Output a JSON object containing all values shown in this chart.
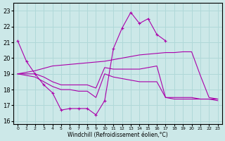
{
  "xlabel": "Windchill (Refroidissement éolien,°C)",
  "xlim": [
    -0.5,
    23.5
  ],
  "ylim": [
    15.8,
    23.5
  ],
  "yticks": [
    16,
    17,
    18,
    19,
    20,
    21,
    22,
    23
  ],
  "xticks": [
    0,
    1,
    2,
    3,
    4,
    5,
    6,
    7,
    8,
    9,
    10,
    11,
    12,
    13,
    14,
    15,
    16,
    17,
    18,
    19,
    20,
    21,
    22,
    23
  ],
  "background_color": "#cce8e8",
  "grid_color": "#b0d8d8",
  "line_color": "#aa00aa",
  "line1_x": [
    0,
    1,
    2,
    3,
    4,
    5,
    6,
    7,
    8,
    9,
    10,
    11,
    12,
    13,
    14,
    15,
    16,
    17
  ],
  "line1_y": [
    21.1,
    19.8,
    19.0,
    18.3,
    17.8,
    16.7,
    16.8,
    16.8,
    16.8,
    16.4,
    17.3,
    20.6,
    21.9,
    22.9,
    22.2,
    22.5,
    21.5,
    21.1
  ],
  "line2_x": [
    0,
    1,
    2,
    3,
    4,
    5,
    6,
    7,
    8,
    9,
    10,
    11,
    12,
    13,
    14,
    15,
    16,
    17,
    18,
    19,
    20,
    21,
    22,
    23
  ],
  "line2_y": [
    19.0,
    19.1,
    19.2,
    19.35,
    19.5,
    19.55,
    19.6,
    19.65,
    19.7,
    19.75,
    19.8,
    19.9,
    20.0,
    20.1,
    20.2,
    20.25,
    20.3,
    20.35,
    20.35,
    20.4,
    20.4,
    18.9,
    17.5,
    17.4
  ],
  "line3_x": [
    0,
    1,
    2,
    3,
    4,
    5,
    6,
    7,
    8,
    9,
    10,
    11,
    12,
    13,
    14,
    15,
    16,
    17,
    18,
    19,
    20,
    21,
    22,
    23
  ],
  "line3_y": [
    19.0,
    19.0,
    19.0,
    18.8,
    18.5,
    18.3,
    18.3,
    18.3,
    18.3,
    18.1,
    19.4,
    19.3,
    19.3,
    19.3,
    19.3,
    19.4,
    19.5,
    17.5,
    17.5,
    17.5,
    17.5,
    17.4,
    17.4,
    17.4
  ],
  "line4_x": [
    0,
    1,
    2,
    3,
    4,
    5,
    6,
    7,
    8,
    9,
    10,
    11,
    12,
    13,
    14,
    15,
    16,
    17,
    18,
    19,
    20,
    21,
    22,
    23
  ],
  "line4_y": [
    19.0,
    18.9,
    18.8,
    18.5,
    18.2,
    18.0,
    18.0,
    17.9,
    17.9,
    17.5,
    19.0,
    18.8,
    18.7,
    18.6,
    18.5,
    18.5,
    18.5,
    17.5,
    17.4,
    17.4,
    17.4,
    17.4,
    17.4,
    17.3
  ]
}
